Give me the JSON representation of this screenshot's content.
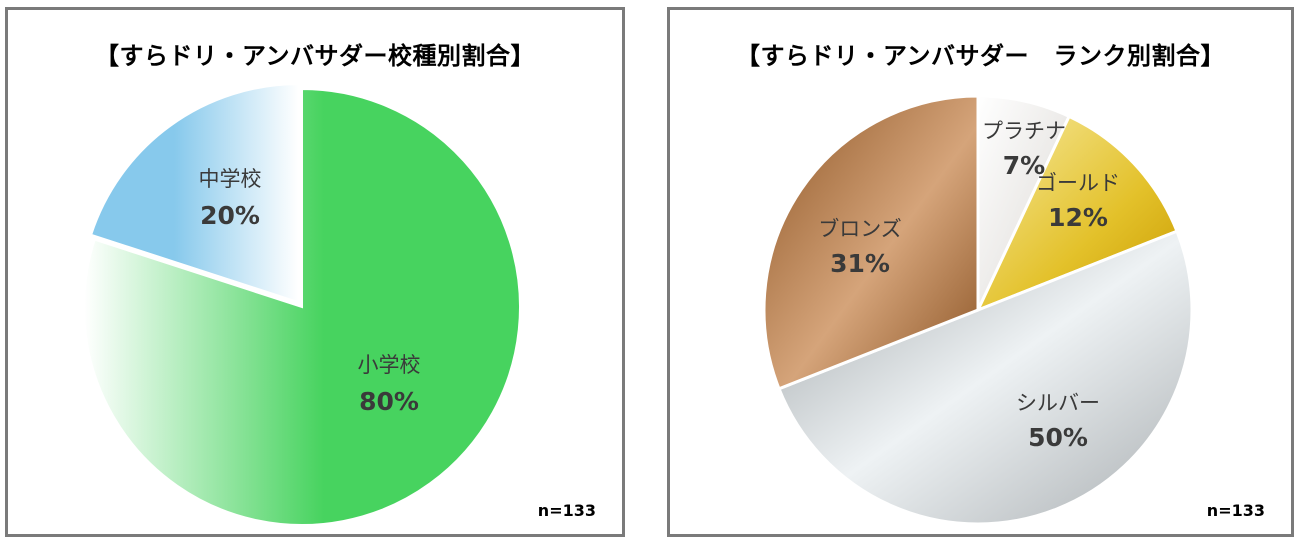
{
  "chart_data": [
    {
      "type": "pie",
      "title": "【すらドリ・アンバサダー校種別割合】",
      "note": "n=133",
      "slices": [
        {
          "label": "小学校",
          "value": 80,
          "value_label": "80%",
          "color": "#47d35f"
        },
        {
          "label": "中学校",
          "value": 20,
          "value_label": "20%",
          "color": "#87c9ec"
        }
      ]
    },
    {
      "type": "pie",
      "title": "【すらドリ・アンバサダー　ランク別割合】",
      "note": "n=133",
      "slices": [
        {
          "label": "プラチナ",
          "value": 7,
          "value_label": "7%",
          "color": "#e9e7e4"
        },
        {
          "label": "ゴールド",
          "value": 12,
          "value_label": "12%",
          "color": "#e3c12a"
        },
        {
          "label": "シルバー",
          "value": 50,
          "value_label": "50%",
          "color": "#c0c5c7"
        },
        {
          "label": "ブロンズ",
          "value": 31,
          "value_label": "31%",
          "color": "#b8814d"
        }
      ]
    }
  ]
}
